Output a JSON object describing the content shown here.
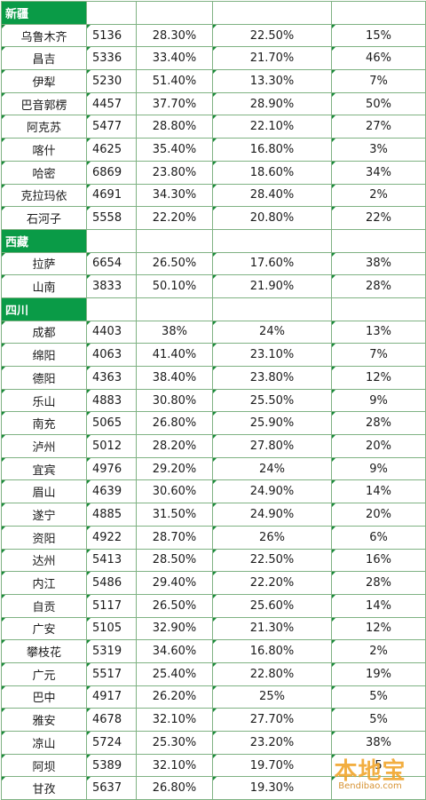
{
  "sections": [
    {
      "region": "新疆",
      "rows": [
        {
          "city": "乌鲁木齐",
          "v1": "5136",
          "v2": "28.30%",
          "v3": "22.50%",
          "v4": "15%"
        },
        {
          "city": "昌吉",
          "v1": "5336",
          "v2": "33.40%",
          "v3": "21.70%",
          "v4": "46%"
        },
        {
          "city": "伊犁",
          "v1": "5230",
          "v2": "51.40%",
          "v3": "13.30%",
          "v4": "7%"
        },
        {
          "city": "巴音郭楞",
          "v1": "4457",
          "v2": "37.70%",
          "v3": "28.90%",
          "v4": "50%"
        },
        {
          "city": "阿克苏",
          "v1": "5477",
          "v2": "28.80%",
          "v3": "22.10%",
          "v4": "27%"
        },
        {
          "city": "喀什",
          "v1": "4625",
          "v2": "35.40%",
          "v3": "16.80%",
          "v4": "3%"
        },
        {
          "city": "哈密",
          "v1": "6869",
          "v2": "23.80%",
          "v3": "18.60%",
          "v4": "34%"
        },
        {
          "city": "克拉玛依",
          "v1": "4691",
          "v2": "34.30%",
          "v3": "28.40%",
          "v4": "2%"
        },
        {
          "city": "石河子",
          "v1": "5558",
          "v2": "22.20%",
          "v3": "20.80%",
          "v4": "22%"
        }
      ]
    },
    {
      "region": "西藏",
      "rows": [
        {
          "city": "拉萨",
          "v1": "6654",
          "v2": "26.50%",
          "v3": "17.60%",
          "v4": "38%"
        },
        {
          "city": "山南",
          "v1": "3833",
          "v2": "50.10%",
          "v3": "21.90%",
          "v4": "28%"
        }
      ]
    },
    {
      "region": "四川",
      "rows": [
        {
          "city": "成都",
          "v1": "4403",
          "v2": "38%",
          "v3": "24%",
          "v4": "13%"
        },
        {
          "city": "绵阳",
          "v1": "4063",
          "v2": "41.40%",
          "v3": "23.10%",
          "v4": "7%"
        },
        {
          "city": "德阳",
          "v1": "4363",
          "v2": "38.40%",
          "v3": "23.80%",
          "v4": "12%"
        },
        {
          "city": "乐山",
          "v1": "4883",
          "v2": "30.80%",
          "v3": "25.50%",
          "v4": "9%"
        },
        {
          "city": "南充",
          "v1": "5065",
          "v2": "26.80%",
          "v3": "25.90%",
          "v4": "28%"
        },
        {
          "city": "泸州",
          "v1": "5012",
          "v2": "28.20%",
          "v3": "27.80%",
          "v4": "20%"
        },
        {
          "city": "宜宾",
          "v1": "4976",
          "v2": "29.20%",
          "v3": "24%",
          "v4": "9%"
        },
        {
          "city": "眉山",
          "v1": "4639",
          "v2": "30.60%",
          "v3": "24.90%",
          "v4": "14%"
        },
        {
          "city": "遂宁",
          "v1": "4885",
          "v2": "31.50%",
          "v3": "24.90%",
          "v4": "20%"
        },
        {
          "city": "资阳",
          "v1": "4922",
          "v2": "28.70%",
          "v3": "26%",
          "v4": "6%"
        },
        {
          "city": "达州",
          "v1": "5413",
          "v2": "28.50%",
          "v3": "22.50%",
          "v4": "16%"
        },
        {
          "city": "内江",
          "v1": "5486",
          "v2": "29.40%",
          "v3": "22.20%",
          "v4": "28%"
        },
        {
          "city": "自贡",
          "v1": "5117",
          "v2": "26.50%",
          "v3": "25.60%",
          "v4": "14%"
        },
        {
          "city": "广安",
          "v1": "5105",
          "v2": "32.90%",
          "v3": "21.30%",
          "v4": "12%"
        },
        {
          "city": "攀枝花",
          "v1": "5319",
          "v2": "34.60%",
          "v3": "16.80%",
          "v4": "2%"
        },
        {
          "city": "广元",
          "v1": "5517",
          "v2": "25.40%",
          "v3": "22.80%",
          "v4": "19%"
        },
        {
          "city": "巴中",
          "v1": "4917",
          "v2": "26.20%",
          "v3": "25%",
          "v4": "5%"
        },
        {
          "city": "雅安",
          "v1": "4678",
          "v2": "32.10%",
          "v3": "27.70%",
          "v4": "5%"
        },
        {
          "city": "凉山",
          "v1": "5724",
          "v2": "25.30%",
          "v3": "23.20%",
          "v4": "38%"
        },
        {
          "city": "阿坝",
          "v1": "5389",
          "v2": "32.10%",
          "v3": "19.70%",
          "v4": "5"
        },
        {
          "city": "甘孜",
          "v1": "5637",
          "v2": "26.80%",
          "v3": "19.30%",
          "v4": ""
        }
      ]
    }
  ],
  "watermark": {
    "main": "本地宝",
    "sub": "Bendibao.com"
  }
}
